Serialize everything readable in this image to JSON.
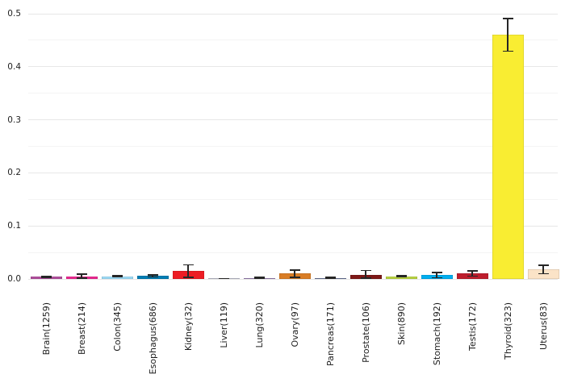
{
  "chart_data": {
    "type": "bar",
    "title": "",
    "xlabel": "",
    "ylabel": "",
    "categories": [
      "Brain(1259)",
      "Breast(214)",
      "Colon(345)",
      "Esophagus(686)",
      "Kidney(32)",
      "Liver(119)",
      "Lung(320)",
      "Ovary(97)",
      "Pancreas(171)",
      "Prostate(106)",
      "Skin(890)",
      "Stomach(192)",
      "Testis(172)",
      "Thyroid(323)",
      "Uterus(83)"
    ],
    "values": [
      0.004,
      0.005,
      0.005,
      0.006,
      0.015,
      0.001,
      0.002,
      0.01,
      0.002,
      0.008,
      0.005,
      0.007,
      0.01,
      0.46,
      0.018
    ],
    "errors": [
      0.002,
      0.005,
      0.002,
      0.003,
      0.013,
      0.001,
      0.002,
      0.008,
      0.002,
      0.009,
      0.002,
      0.006,
      0.006,
      0.032,
      0.009
    ],
    "colors": [
      "#B2509E",
      "#ED2891",
      "#9EDDF9",
      "#007EB5",
      "#ED1C24",
      "#CACCDB",
      "#A084BD",
      "#D97D25",
      "#6E7BA2",
      "#7E1918",
      "#BBD642",
      "#00AEEF",
      "#BE1E2D",
      "#F9ED32",
      "#FBE3C7"
    ],
    "ylim": [
      0,
      0.5
    ],
    "ytick_labels": [
      "0.0",
      "0.1",
      "0.2",
      "0.3",
      "0.4",
      "0.5"
    ],
    "ytick_values": [
      0.0,
      0.1,
      0.2,
      0.3,
      0.4,
      0.5
    ],
    "minor_ytick_values": [
      0.05,
      0.15,
      0.25,
      0.35,
      0.45
    ],
    "grid": {
      "major_color": "#e7e7e7",
      "minor_color": "#f4f4f4",
      "orientation": "horizontal"
    },
    "error_bar_color": "#262626",
    "background_color": "#ffffff",
    "legend": "none"
  }
}
